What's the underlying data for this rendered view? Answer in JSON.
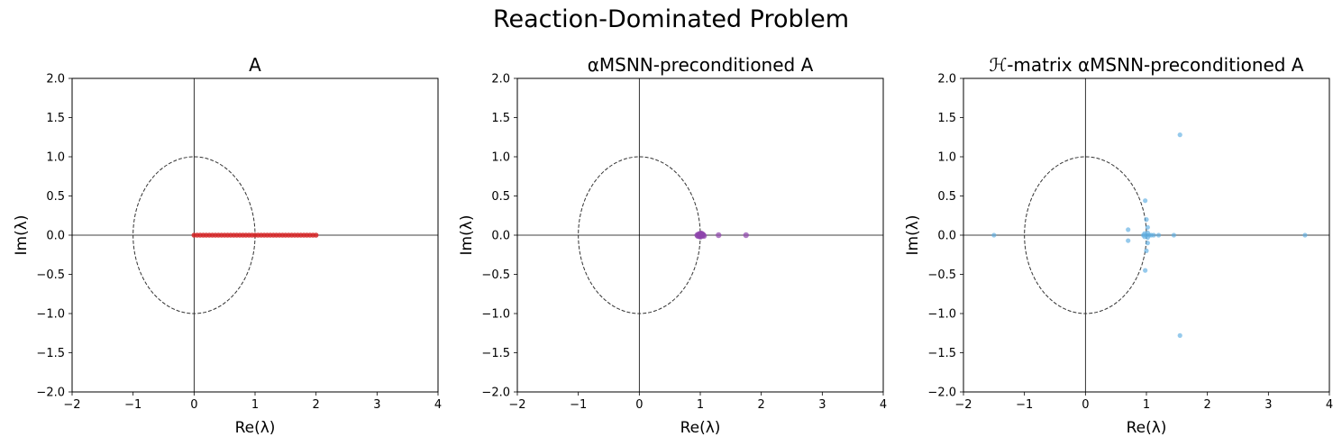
{
  "figure": {
    "suptitle": "Reaction-Dominated Problem"
  },
  "chart_data": [
    {
      "type": "scatter",
      "title": "A",
      "title_math": true,
      "xlabel": "Re(λ)",
      "ylabel": "Im(λ)",
      "xlim": [
        -2,
        4
      ],
      "ylim": [
        -2,
        2
      ],
      "xticks": [
        -2,
        -1,
        0,
        1,
        2,
        3,
        4
      ],
      "yticks": [
        -2.0,
        -1.5,
        -1.0,
        -0.5,
        0.0,
        0.5,
        1.0,
        1.5,
        2.0
      ],
      "xtick_labels": [
        "−2",
        "−1",
        "0",
        "1",
        "2",
        "3",
        "4"
      ],
      "ytick_labels": [
        "−2.0",
        "−1.5",
        "−1.0",
        "−0.5",
        "0.0",
        "0.5",
        "1.0",
        "1.5",
        "2.0"
      ],
      "grid": false,
      "unit_circle": true,
      "color": "#d62728",
      "series": [
        {
          "points": [
            [
              0.0,
              0.0
            ],
            [
              0.05,
              0.0
            ],
            [
              0.1,
              0.0
            ],
            [
              0.15,
              0.0
            ],
            [
              0.2,
              0.0
            ],
            [
              0.25,
              0.0
            ],
            [
              0.3,
              0.0
            ],
            [
              0.35,
              0.0
            ],
            [
              0.4,
              0.0
            ],
            [
              0.45,
              0.0
            ],
            [
              0.5,
              0.0
            ],
            [
              0.55,
              0.0
            ],
            [
              0.6,
              0.0
            ],
            [
              0.65,
              0.0
            ],
            [
              0.7,
              0.0
            ],
            [
              0.75,
              0.0
            ],
            [
              0.8,
              0.0
            ],
            [
              0.85,
              0.0
            ],
            [
              0.9,
              0.0
            ],
            [
              0.95,
              0.0
            ],
            [
              1.0,
              0.0
            ],
            [
              1.05,
              0.0
            ],
            [
              1.1,
              0.0
            ],
            [
              1.15,
              0.0
            ],
            [
              1.2,
              0.0
            ],
            [
              1.25,
              0.0
            ],
            [
              1.3,
              0.0
            ],
            [
              1.35,
              0.0
            ],
            [
              1.4,
              0.0
            ],
            [
              1.45,
              0.0
            ],
            [
              1.5,
              0.0
            ],
            [
              1.55,
              0.0
            ],
            [
              1.6,
              0.0
            ],
            [
              1.65,
              0.0
            ],
            [
              1.7,
              0.0
            ],
            [
              1.75,
              0.0
            ],
            [
              1.8,
              0.0
            ],
            [
              1.85,
              0.0
            ],
            [
              1.9,
              0.0
            ],
            [
              1.95,
              0.0
            ],
            [
              2.0,
              0.0
            ]
          ]
        }
      ]
    },
    {
      "type": "scatter",
      "title": "αMSNN-preconditioned A",
      "title_math": true,
      "xlabel": "Re(λ)",
      "ylabel": "Im(λ)",
      "xlim": [
        -2,
        4
      ],
      "ylim": [
        -2,
        2
      ],
      "xticks": [
        -2,
        -1,
        0,
        1,
        2,
        3,
        4
      ],
      "yticks": [
        -2.0,
        -1.5,
        -1.0,
        -0.5,
        0.0,
        0.5,
        1.0,
        1.5,
        2.0
      ],
      "xtick_labels": [
        "−2",
        "−1",
        "0",
        "1",
        "2",
        "3",
        "4"
      ],
      "ytick_labels": [
        "−2.0",
        "−1.5",
        "−1.0",
        "−0.5",
        "0.0",
        "0.5",
        "1.0",
        "1.5",
        "2.0"
      ],
      "grid": false,
      "unit_circle": true,
      "color": "#8e44ad",
      "series": [
        {
          "points": [
            [
              0.95,
              0.0
            ],
            [
              0.97,
              0.01
            ],
            [
              0.98,
              -0.01
            ],
            [
              0.99,
              0.0
            ],
            [
              1.0,
              0.0
            ],
            [
              1.01,
              0.01
            ],
            [
              1.02,
              -0.01
            ],
            [
              1.03,
              0.0
            ],
            [
              1.04,
              0.01
            ],
            [
              1.05,
              0.0
            ],
            [
              1.06,
              -0.01
            ],
            [
              0.96,
              -0.01
            ],
            [
              1.0,
              0.02
            ],
            [
              1.0,
              -0.02
            ],
            [
              1.02,
              0.02
            ],
            [
              1.3,
              0.0
            ],
            [
              1.75,
              0.0
            ]
          ]
        }
      ]
    },
    {
      "type": "scatter",
      "title": "ℋ-matrix αMSNN-preconditioned A",
      "title_math": true,
      "xlabel": "Re(λ)",
      "ylabel": "Im(λ)",
      "xlim": [
        -2,
        4
      ],
      "ylim": [
        -2,
        2
      ],
      "xticks": [
        -2,
        -1,
        0,
        1,
        2,
        3,
        4
      ],
      "yticks": [
        -2.0,
        -1.5,
        -1.0,
        -0.5,
        0.0,
        0.5,
        1.0,
        1.5,
        2.0
      ],
      "xtick_labels": [
        "−2",
        "−1",
        "0",
        "1",
        "2",
        "3",
        "4"
      ],
      "ytick_labels": [
        "−2.0",
        "−1.5",
        "−1.0",
        "−0.5",
        "0.0",
        "0.5",
        "1.0",
        "1.5",
        "2.0"
      ],
      "grid": false,
      "unit_circle": true,
      "color": "#5dade2",
      "series": [
        {
          "points": [
            [
              -1.5,
              0.0
            ],
            [
              0.7,
              0.07
            ],
            [
              0.7,
              -0.07
            ],
            [
              0.95,
              0.0
            ],
            [
              0.97,
              0.02
            ],
            [
              0.97,
              -0.02
            ],
            [
              1.0,
              0.0
            ],
            [
              1.02,
              0.03
            ],
            [
              1.02,
              -0.03
            ],
            [
              1.05,
              0.0
            ],
            [
              1.08,
              0.0
            ],
            [
              1.12,
              0.0
            ],
            [
              1.0,
              0.2
            ],
            [
              1.0,
              -0.2
            ],
            [
              1.02,
              0.1
            ],
            [
              1.02,
              -0.1
            ],
            [
              0.98,
              0.44
            ],
            [
              0.98,
              -0.45
            ],
            [
              1.2,
              0.0
            ],
            [
              1.45,
              0.0
            ],
            [
              1.55,
              1.28
            ],
            [
              1.55,
              -1.28
            ],
            [
              3.6,
              0.0
            ]
          ]
        }
      ]
    }
  ]
}
